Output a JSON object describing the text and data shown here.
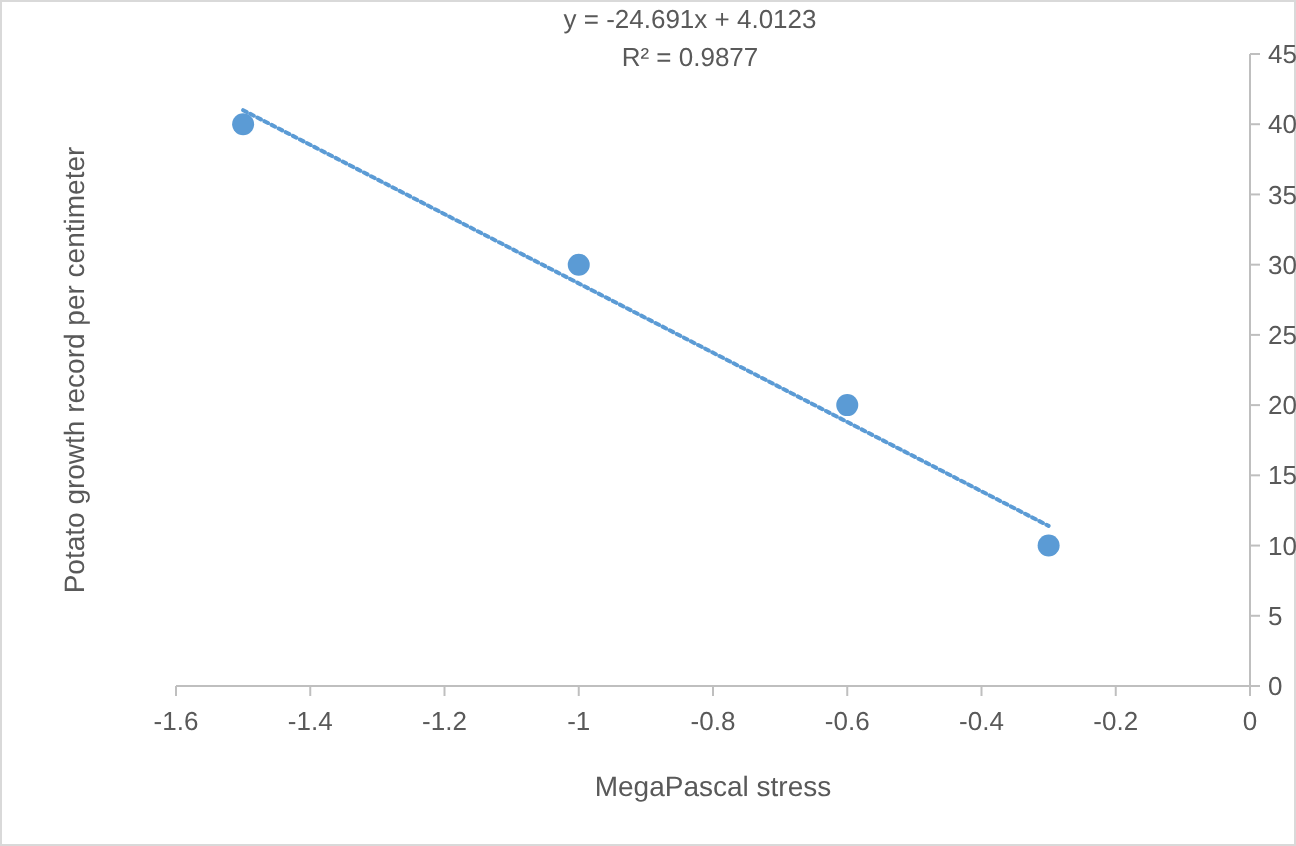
{
  "chart_data": {
    "type": "scatter",
    "xlabel": "MegaPascal stress",
    "ylabel": "Potato growth record per centimeter",
    "annotations": [
      "y = -24.691x + 4.0123",
      "R² = 0.9877"
    ],
    "series": [
      {
        "color": "#5b9bd5",
        "x": [
          -1.5,
          -1,
          -0.6,
          -0.3
        ],
        "values": [
          40,
          30,
          20,
          10
        ],
        "marker": "circle"
      },
      {
        "type": "line",
        "color": "#5b9bd5",
        "x": [
          -1.5,
          -0.3
        ],
        "values": [
          41,
          11.4
        ],
        "line_style": "dotted",
        "marker": "none"
      }
    ],
    "xlim": [
      -1.6,
      0
    ],
    "xticks": [
      -1.6,
      -1.4,
      -1.2,
      -1,
      -0.8,
      -0.6,
      -0.4,
      -0.2,
      0
    ],
    "ylim": [
      0,
      45
    ],
    "yticks": [
      0,
      5,
      10,
      15,
      20,
      25,
      30,
      35,
      40,
      45
    ],
    "grid": false
  }
}
